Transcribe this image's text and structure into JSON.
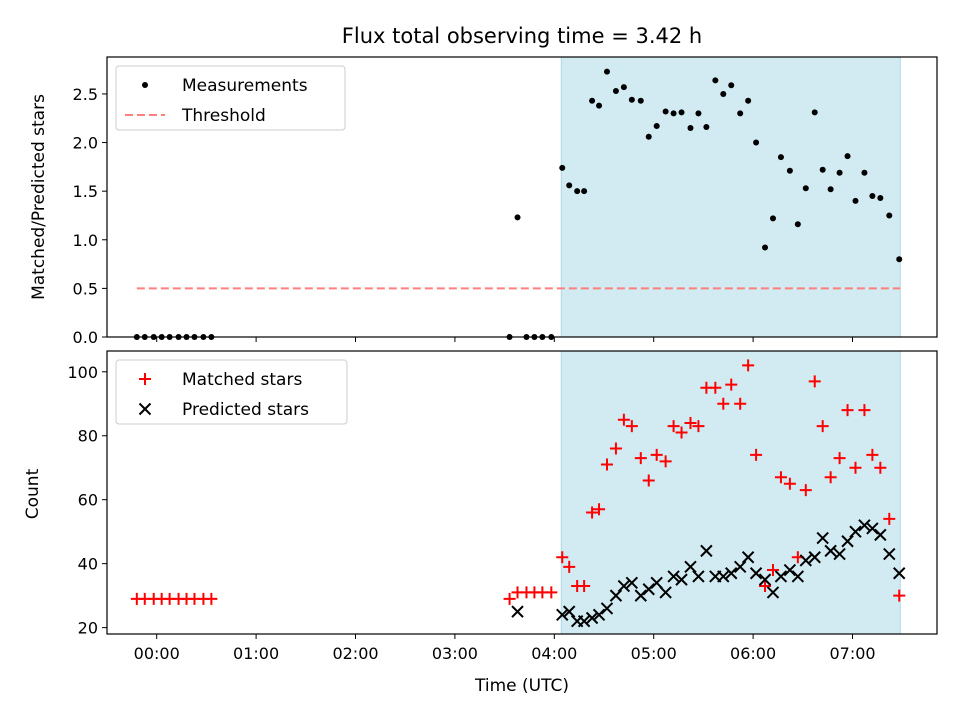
{
  "title": "Flux total observing time = 3.42 h",
  "chart_data": [
    {
      "type": "scatter",
      "ylabel": "Matched/Predicted stars",
      "ylim": [
        0,
        2.88
      ],
      "yticks": [
        "0.0",
        "0.5",
        "1.0",
        "1.5",
        "2.0",
        "2.5"
      ],
      "xlim_hours": [
        -0.5,
        7.85
      ],
      "shaded_span_hours": [
        4.07,
        7.48
      ],
      "shade_color": "#add8e6",
      "threshold": 0.5,
      "legend_placement": "upper-left",
      "legend": [
        {
          "label": "Measurements",
          "marker": "dot",
          "color": "#000000"
        },
        {
          "label": "Threshold",
          "marker": "dashed-line",
          "color": "#ff7f7f"
        }
      ],
      "series": [
        {
          "name": "Measurements",
          "color": "#000000",
          "points": [
            [
              -0.2,
              0.0
            ],
            [
              -0.12,
              0.0
            ],
            [
              -0.03,
              0.0
            ],
            [
              0.05,
              0.0
            ],
            [
              0.13,
              0.0
            ],
            [
              0.22,
              0.0
            ],
            [
              0.3,
              0.0
            ],
            [
              0.38,
              0.0
            ],
            [
              0.47,
              0.0
            ],
            [
              0.55,
              0.0
            ],
            [
              3.55,
              0.0
            ],
            [
              3.63,
              1.23
            ],
            [
              3.72,
              0.0
            ],
            [
              3.8,
              0.0
            ],
            [
              3.88,
              0.0
            ],
            [
              3.97,
              0.0
            ],
            [
              4.08,
              1.74
            ],
            [
              4.15,
              1.56
            ],
            [
              4.23,
              1.5
            ],
            [
              4.3,
              1.5
            ],
            [
              4.38,
              2.43
            ],
            [
              4.45,
              2.38
            ],
            [
              4.53,
              2.73
            ],
            [
              4.62,
              2.53
            ],
            [
              4.7,
              2.57
            ],
            [
              4.78,
              2.44
            ],
            [
              4.87,
              2.43
            ],
            [
              4.95,
              2.06
            ],
            [
              5.03,
              2.17
            ],
            [
              5.12,
              2.32
            ],
            [
              5.2,
              2.3
            ],
            [
              5.28,
              2.31
            ],
            [
              5.37,
              2.15
            ],
            [
              5.45,
              2.3
            ],
            [
              5.53,
              2.16
            ],
            [
              5.62,
              2.64
            ],
            [
              5.7,
              2.5
            ],
            [
              5.78,
              2.59
            ],
            [
              5.87,
              2.3
            ],
            [
              5.95,
              2.43
            ],
            [
              6.03,
              2.0
            ],
            [
              6.12,
              0.92
            ],
            [
              6.2,
              1.22
            ],
            [
              6.28,
              1.85
            ],
            [
              6.37,
              1.71
            ],
            [
              6.45,
              1.16
            ],
            [
              6.53,
              1.53
            ],
            [
              6.62,
              2.31
            ],
            [
              6.7,
              1.72
            ],
            [
              6.78,
              1.52
            ],
            [
              6.87,
              1.69
            ],
            [
              6.95,
              1.86
            ],
            [
              7.03,
              1.4
            ],
            [
              7.12,
              1.69
            ],
            [
              7.2,
              1.45
            ],
            [
              7.28,
              1.43
            ],
            [
              7.37,
              1.25
            ],
            [
              7.47,
              0.8
            ]
          ]
        }
      ]
    },
    {
      "type": "scatter",
      "ylabel": "Count",
      "xlabel": "Time (UTC)",
      "ylim": [
        18,
        106.5
      ],
      "yticks": [
        "20",
        "40",
        "60",
        "80",
        "100"
      ],
      "xticks": [
        "00:00",
        "01:00",
        "02:00",
        "03:00",
        "04:00",
        "05:00",
        "06:00",
        "07:00"
      ],
      "xlim_hours": [
        -0.5,
        7.85
      ],
      "shaded_span_hours": [
        4.07,
        7.48
      ],
      "shade_color": "#add8e6",
      "legend_placement": "upper-left",
      "legend": [
        {
          "label": "Matched stars",
          "marker": "plus",
          "color": "#ff0000"
        },
        {
          "label": "Predicted stars",
          "marker": "cross",
          "color": "#000000"
        }
      ],
      "series": [
        {
          "name": "Matched stars",
          "color": "#ff0000",
          "marker": "plus",
          "points": [
            [
              -0.2,
              29
            ],
            [
              -0.12,
              29
            ],
            [
              -0.03,
              29
            ],
            [
              0.05,
              29
            ],
            [
              0.13,
              29
            ],
            [
              0.22,
              29
            ],
            [
              0.3,
              29
            ],
            [
              0.38,
              29
            ],
            [
              0.47,
              29
            ],
            [
              0.55,
              29
            ],
            [
              3.55,
              29
            ],
            [
              3.63,
              31
            ],
            [
              3.72,
              31
            ],
            [
              3.8,
              31
            ],
            [
              3.88,
              31
            ],
            [
              3.97,
              31
            ],
            [
              4.08,
              42
            ],
            [
              4.15,
              39
            ],
            [
              4.23,
              33
            ],
            [
              4.3,
              33
            ],
            [
              4.38,
              56
            ],
            [
              4.45,
              57
            ],
            [
              4.53,
              71
            ],
            [
              4.62,
              76
            ],
            [
              4.7,
              85
            ],
            [
              4.78,
              83
            ],
            [
              4.87,
              73
            ],
            [
              4.95,
              66
            ],
            [
              5.03,
              74
            ],
            [
              5.12,
              72
            ],
            [
              5.2,
              83
            ],
            [
              5.28,
              81
            ],
            [
              5.37,
              84
            ],
            [
              5.45,
              83
            ],
            [
              5.53,
              95
            ],
            [
              5.62,
              95
            ],
            [
              5.7,
              90
            ],
            [
              5.78,
              96
            ],
            [
              5.87,
              90
            ],
            [
              5.95,
              102
            ],
            [
              6.03,
              74
            ],
            [
              6.12,
              33
            ],
            [
              6.2,
              38
            ],
            [
              6.28,
              67
            ],
            [
              6.37,
              65
            ],
            [
              6.45,
              42
            ],
            [
              6.53,
              63
            ],
            [
              6.62,
              97
            ],
            [
              6.7,
              83
            ],
            [
              6.78,
              67
            ],
            [
              6.87,
              73
            ],
            [
              6.95,
              88
            ],
            [
              7.03,
              70
            ],
            [
              7.12,
              88
            ],
            [
              7.2,
              74
            ],
            [
              7.28,
              70
            ],
            [
              7.37,
              54
            ],
            [
              7.47,
              30
            ]
          ]
        },
        {
          "name": "Predicted stars",
          "color": "#000000",
          "marker": "cross",
          "points": [
            [
              3.63,
              25
            ],
            [
              4.08,
              24
            ],
            [
              4.15,
              25
            ],
            [
              4.23,
              22
            ],
            [
              4.3,
              22
            ],
            [
              4.38,
              23
            ],
            [
              4.45,
              24
            ],
            [
              4.53,
              26
            ],
            [
              4.62,
              30
            ],
            [
              4.7,
              33
            ],
            [
              4.78,
              34
            ],
            [
              4.87,
              30
            ],
            [
              4.95,
              32
            ],
            [
              5.03,
              34
            ],
            [
              5.12,
              31
            ],
            [
              5.2,
              36
            ],
            [
              5.28,
              35
            ],
            [
              5.37,
              39
            ],
            [
              5.45,
              36
            ],
            [
              5.53,
              44
            ],
            [
              5.62,
              36
            ],
            [
              5.7,
              36
            ],
            [
              5.78,
              37
            ],
            [
              5.87,
              39
            ],
            [
              5.95,
              42
            ],
            [
              6.03,
              37
            ],
            [
              6.12,
              35
            ],
            [
              6.2,
              31
            ],
            [
              6.28,
              36
            ],
            [
              6.37,
              38
            ],
            [
              6.45,
              36
            ],
            [
              6.53,
              41
            ],
            [
              6.62,
              42
            ],
            [
              6.7,
              48
            ],
            [
              6.78,
              44
            ],
            [
              6.87,
              43
            ],
            [
              6.95,
              47
            ],
            [
              7.03,
              50
            ],
            [
              7.12,
              52
            ],
            [
              7.2,
              51
            ],
            [
              7.28,
              49
            ],
            [
              7.37,
              43
            ],
            [
              7.47,
              37
            ]
          ]
        }
      ]
    }
  ]
}
